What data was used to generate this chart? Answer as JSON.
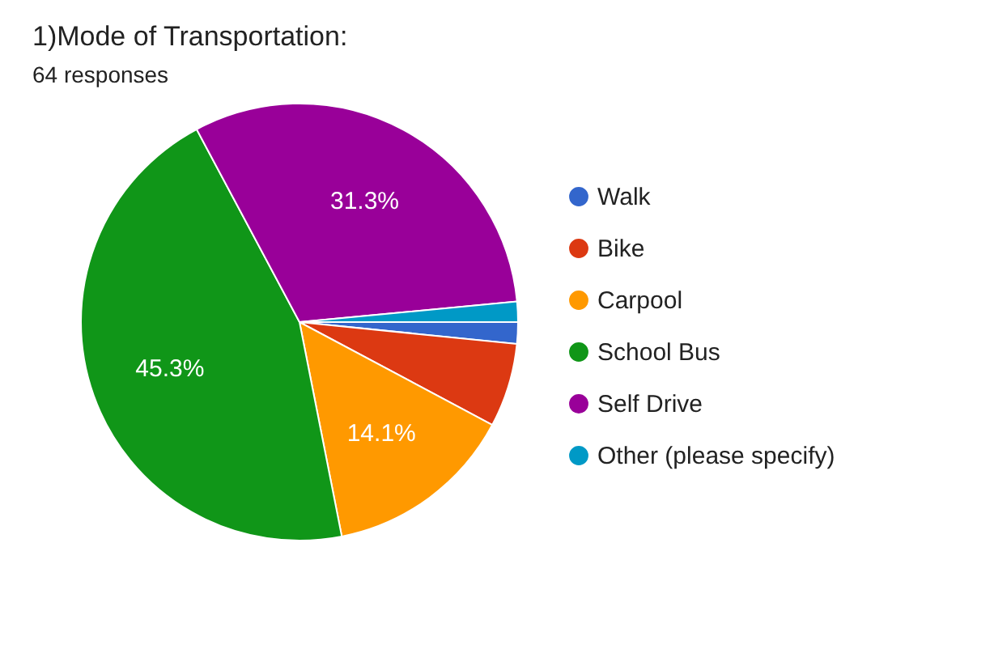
{
  "chart_data": {
    "type": "pie",
    "title": "1)Mode of Transportation:",
    "subtitle": "64 responses",
    "categories": [
      "Walk",
      "Bike",
      "Carpool",
      "School Bus",
      "Self Drive",
      "Other (please specify)"
    ],
    "values": [
      1.6,
      6.2,
      14.1,
      45.3,
      31.3,
      1.5
    ],
    "colors": [
      "#3366cc",
      "#dc3912",
      "#ff9900",
      "#109618",
      "#990099",
      "#0099c6"
    ],
    "value_labels": [
      null,
      null,
      "14.1%",
      "45.3%",
      "31.3%",
      null
    ],
    "legend": "right"
  }
}
